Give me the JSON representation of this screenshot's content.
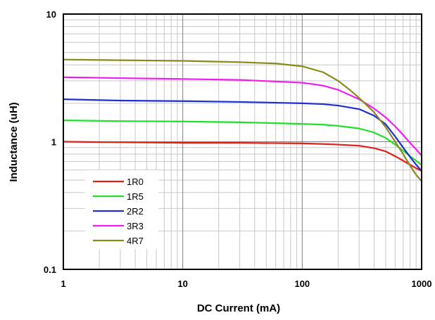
{
  "chart_data": {
    "type": "line",
    "title": "",
    "xlabel": "DC Current (mA)",
    "ylabel": "Inductance (uH)",
    "x_scale": "log",
    "y_scale": "log",
    "xlim": [
      1,
      1000
    ],
    "ylim": [
      0.1,
      10
    ],
    "grid": true,
    "legend_position": "bottom-left",
    "x_ticks": [
      {
        "value": 1,
        "label": "1"
      },
      {
        "value": 10,
        "label": "10"
      },
      {
        "value": 100,
        "label": "100"
      },
      {
        "value": 1000,
        "label": "1000"
      }
    ],
    "y_ticks": [
      {
        "value": 10,
        "label": "10"
      },
      {
        "value": 1,
        "label": "1"
      },
      {
        "value": 0.1,
        "label": "0.1"
      }
    ],
    "series": [
      {
        "name": "1R0",
        "color": "#e0201b",
        "x": [
          1,
          3,
          10,
          30,
          100,
          150,
          200,
          300,
          400,
          500,
          600,
          700,
          800,
          900,
          1000
        ],
        "y": [
          1.0,
          0.99,
          0.98,
          0.98,
          0.97,
          0.96,
          0.95,
          0.93,
          0.89,
          0.84,
          0.77,
          0.71,
          0.66,
          0.62,
          0.59
        ]
      },
      {
        "name": "1R5",
        "color": "#22e02a",
        "x": [
          1,
          3,
          10,
          30,
          100,
          150,
          200,
          300,
          400,
          500,
          600,
          700,
          800,
          900,
          1000
        ],
        "y": [
          1.47,
          1.45,
          1.44,
          1.42,
          1.38,
          1.36,
          1.33,
          1.27,
          1.18,
          1.07,
          0.95,
          0.85,
          0.77,
          0.71,
          0.66
        ]
      },
      {
        "name": "2R2",
        "color": "#1e2fd6",
        "x": [
          1,
          3,
          10,
          30,
          100,
          150,
          200,
          300,
          400,
          500,
          600,
          700,
          800,
          900,
          1000
        ],
        "y": [
          2.15,
          2.1,
          2.08,
          2.05,
          2.0,
          1.97,
          1.92,
          1.8,
          1.6,
          1.37,
          1.1,
          0.9,
          0.76,
          0.66,
          0.59
        ]
      },
      {
        "name": "3R3",
        "color": "#f01ff0",
        "x": [
          1,
          3,
          10,
          30,
          100,
          150,
          200,
          300,
          400,
          500,
          600,
          700,
          800,
          900,
          1000
        ],
        "y": [
          3.2,
          3.15,
          3.1,
          3.05,
          2.9,
          2.75,
          2.55,
          2.15,
          1.82,
          1.55,
          1.32,
          1.13,
          0.98,
          0.87,
          0.78
        ]
      },
      {
        "name": "4R7",
        "color": "#8a8a1e",
        "x": [
          1,
          3,
          10,
          30,
          60,
          100,
          150,
          200,
          250,
          300,
          400,
          500,
          600,
          700,
          800,
          900,
          1000
        ],
        "y": [
          4.4,
          4.35,
          4.3,
          4.2,
          4.1,
          3.9,
          3.5,
          3.0,
          2.55,
          2.2,
          1.7,
          1.3,
          1.0,
          0.8,
          0.65,
          0.55,
          0.49
        ]
      }
    ]
  }
}
